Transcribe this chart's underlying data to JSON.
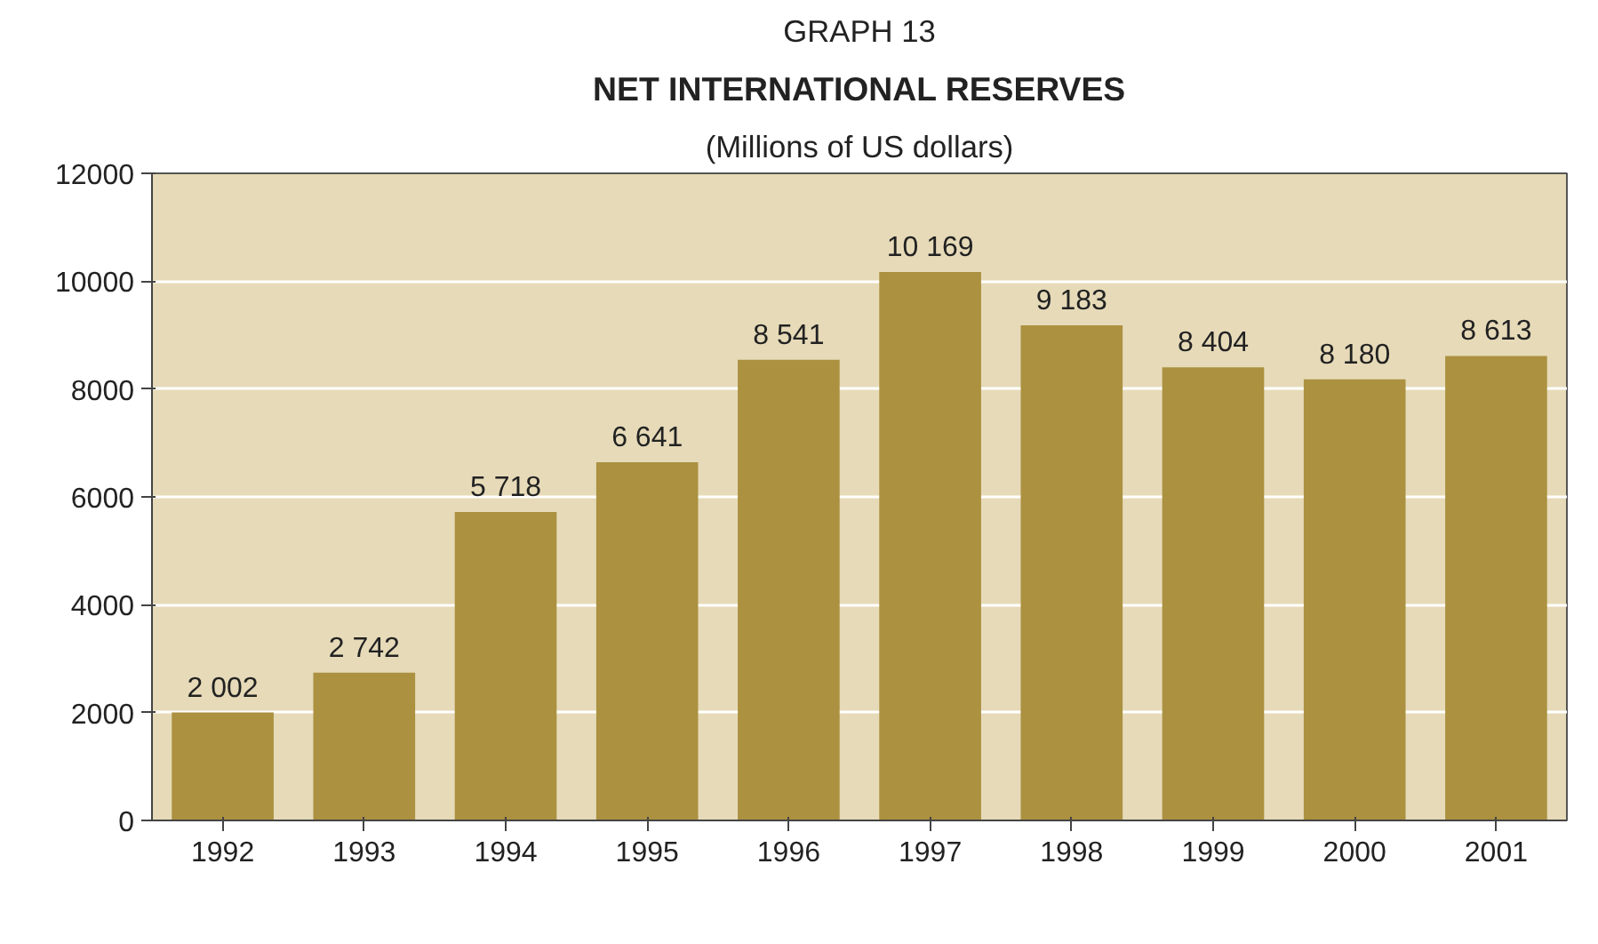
{
  "chart_data": {
    "type": "bar",
    "annotations": [
      "GRAPH 13"
    ],
    "title": "NET INTERNATIONAL RESERVES",
    "subtitle": "(Millions of US dollars)",
    "categories": [
      "1992",
      "1993",
      "1994",
      "1995",
      "1996",
      "1997",
      "1998",
      "1999",
      "2000",
      "2001"
    ],
    "values": [
      2002,
      2742,
      5718,
      6641,
      8541,
      10169,
      9183,
      8404,
      8180,
      8613
    ],
    "value_labels": [
      "2 002",
      "2 742",
      "5 718",
      "6 641",
      "8 541",
      "10 169",
      "9 183",
      "8 404",
      "8 180",
      "8 613"
    ],
    "color": "#ab9140",
    "ylim": [
      0,
      12000
    ],
    "yticks": [
      0,
      2000,
      4000,
      6000,
      8000,
      10000,
      12000
    ],
    "grid": "y"
  }
}
